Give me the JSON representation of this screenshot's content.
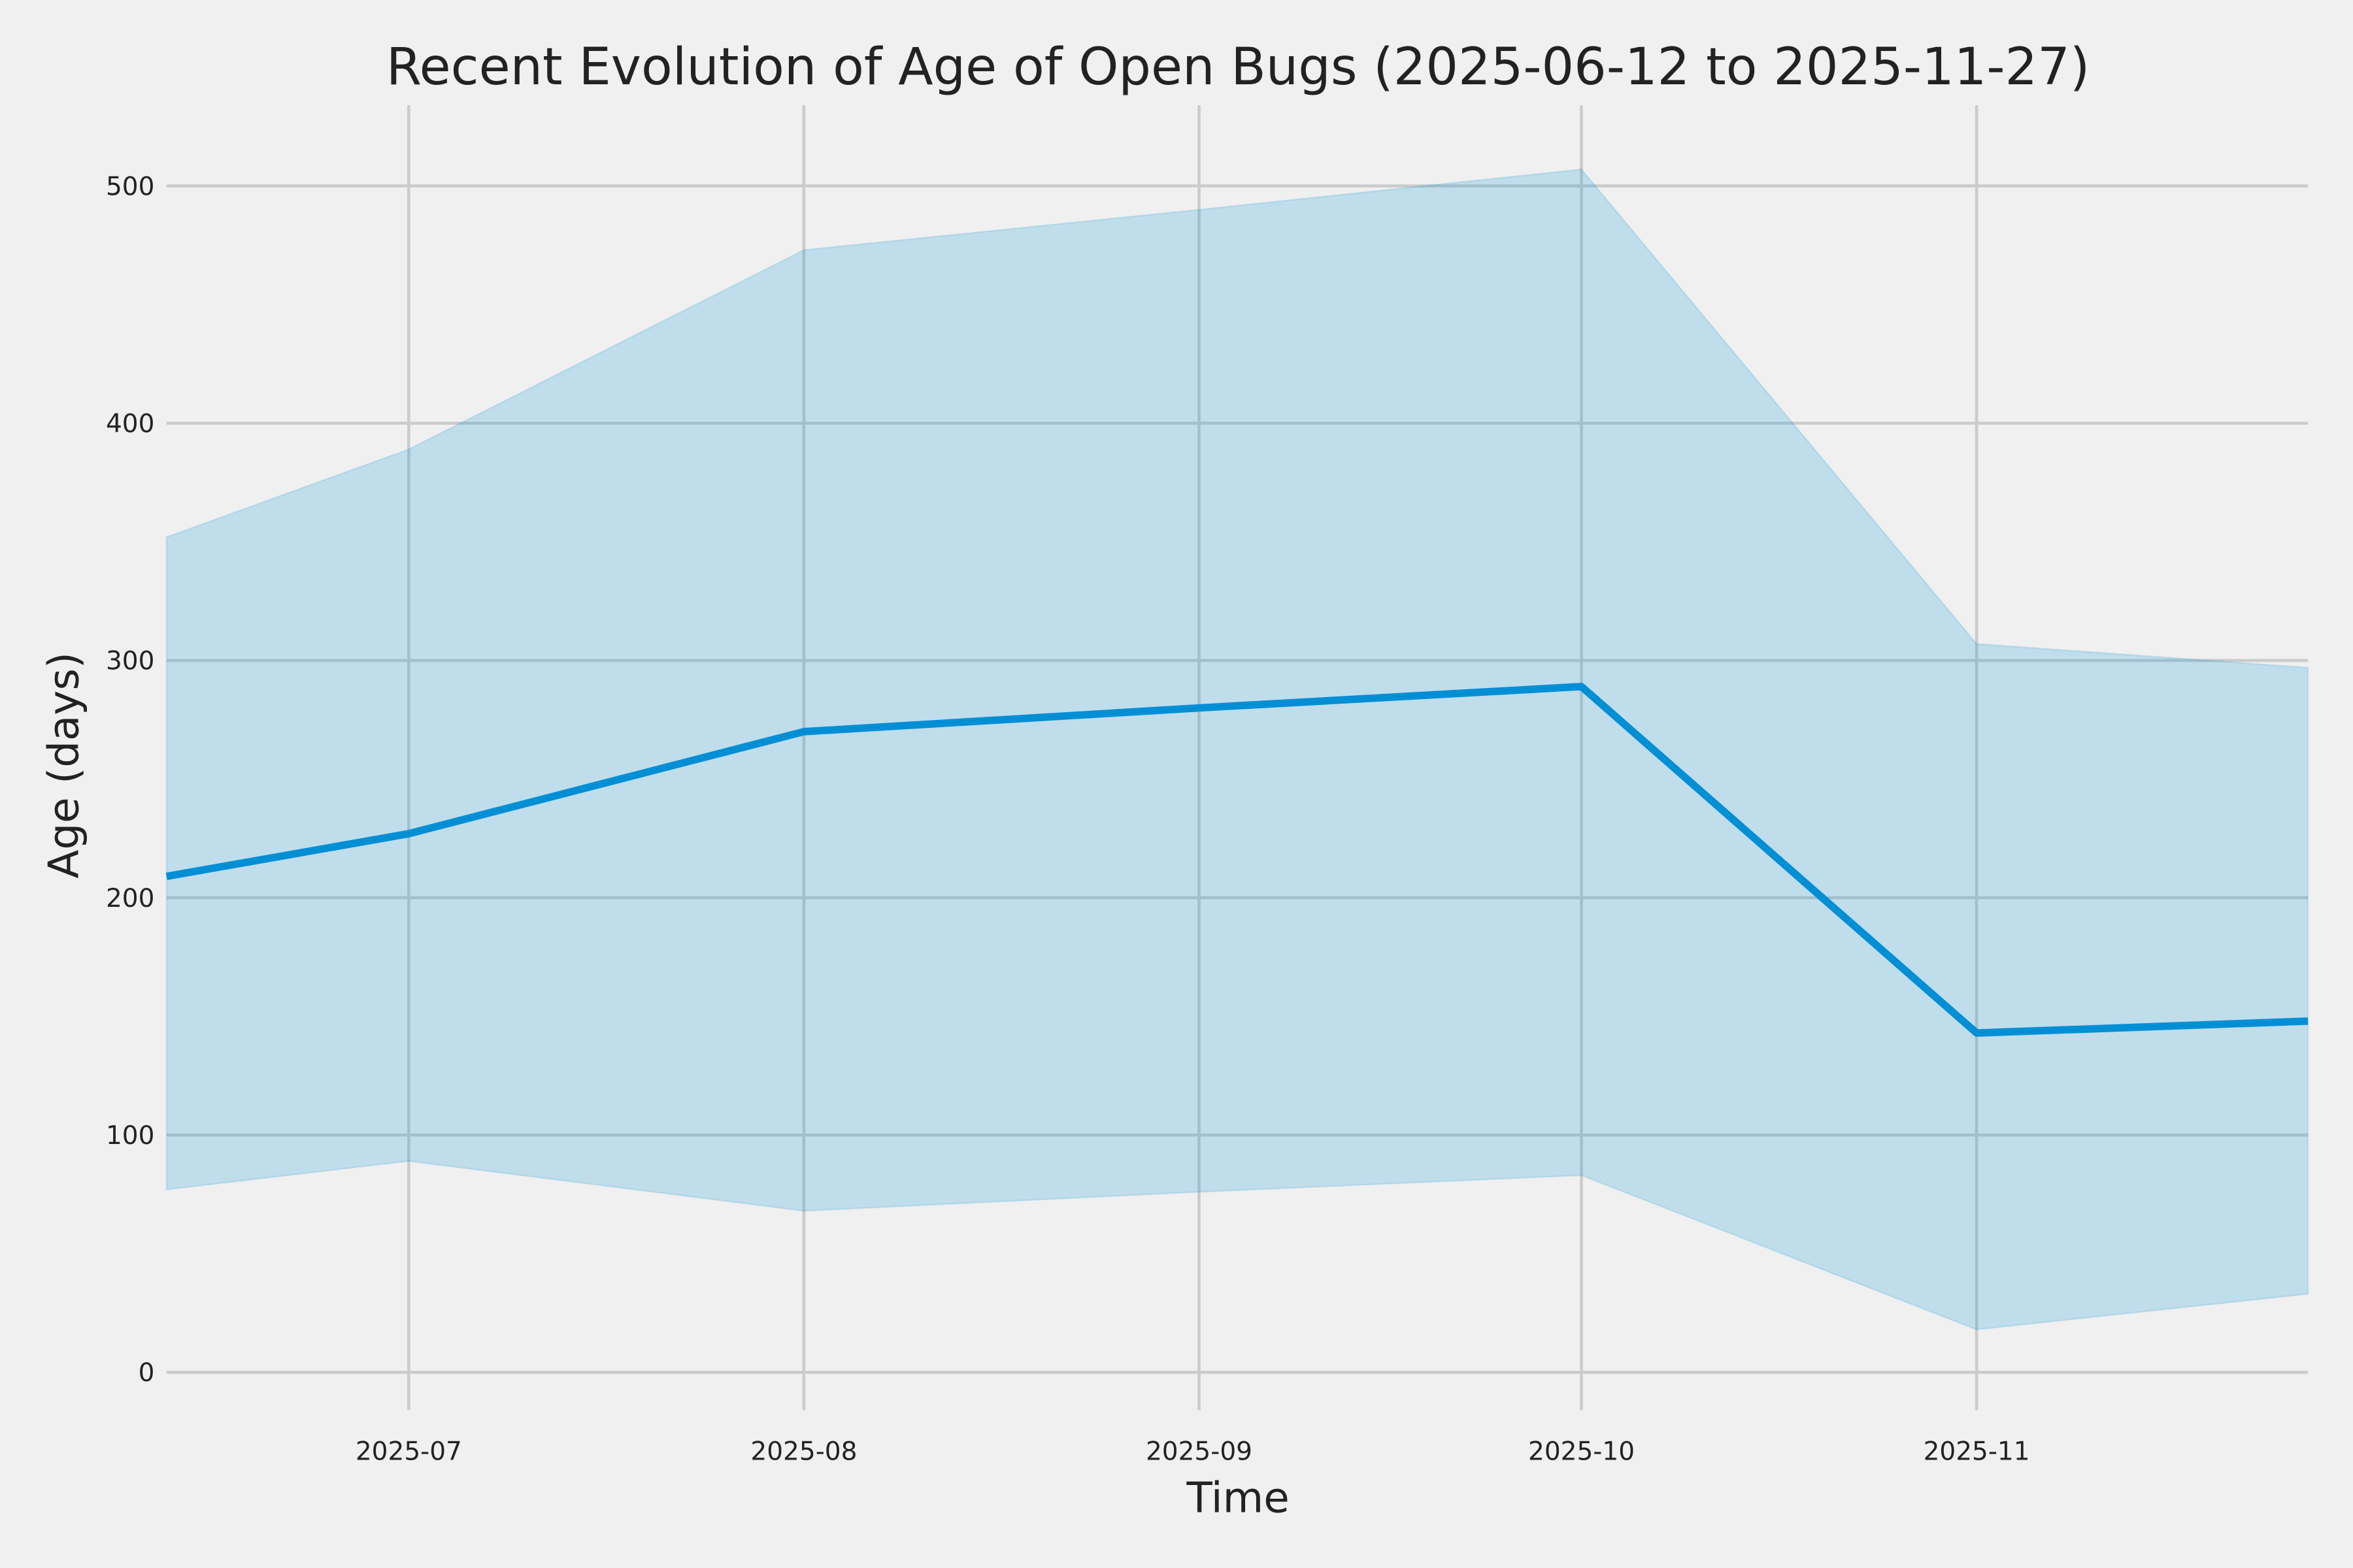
{
  "chart_data": {
    "type": "line",
    "title": "Recent Evolution of Age of Open Bugs (2025-06-12 to 2025-11-27)",
    "xlabel": "Time",
    "ylabel": "Age (days)",
    "x": [
      "2025-06-12",
      "2025-07-01",
      "2025-08-01",
      "2025-09-01",
      "2025-10-01",
      "2025-11-01",
      "2025-11-27"
    ],
    "series": [
      {
        "values": [
          209,
          227,
          270,
          280,
          289,
          143,
          148
        ],
        "color": "#008fd5"
      }
    ],
    "band": {
      "upper": [
        352,
        389,
        473,
        490,
        507,
        307,
        297
      ],
      "lower": [
        77,
        89,
        68,
        76,
        83,
        18,
        33
      ],
      "color": "#008fd5",
      "opacity": 0.2
    },
    "xlim": [
      "2025-06-12",
      "2025-11-27"
    ],
    "ylim": [
      -16,
      534
    ],
    "xticks": [
      "2025-07-01",
      "2025-08-01",
      "2025-09-01",
      "2025-10-01",
      "2025-11-01"
    ],
    "xtick_labels": [
      "2025-07",
      "2025-08",
      "2025-09",
      "2025-10",
      "2025-11"
    ],
    "yticks": [
      0,
      100,
      200,
      300,
      400,
      500
    ],
    "ytick_labels": [
      "0",
      "100",
      "200",
      "300",
      "400",
      "500"
    ],
    "grid": true,
    "background": "#f0f0f0",
    "grid_color": "#cbcbcb"
  }
}
